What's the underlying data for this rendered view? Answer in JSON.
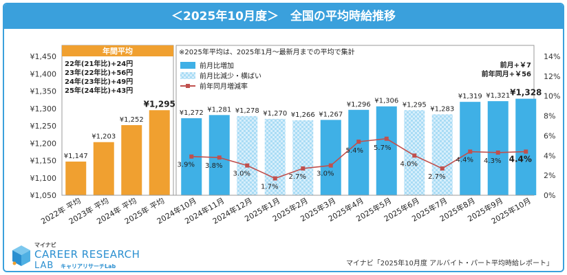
{
  "header": {
    "title": "＜2025年10月度＞　全国の平均時給推移"
  },
  "annual": {
    "title": "年間平均",
    "lines": [
      "22年(21年比)+24円",
      "23年(22年比)+56円",
      "24年(23年比)+49円",
      "25年(24年比)+43円"
    ]
  },
  "note": "※2025年平均は、2025年1月～最新月までの平均で集計",
  "change_box": {
    "mom": "前月+￥7",
    "yoy": "前年同月+￥56"
  },
  "legend": {
    "increase": "前月比増加",
    "decrease": "前月比減少・横ばい",
    "yoy_rate": "前年同月増減率"
  },
  "colors": {
    "annual": "#f0a030",
    "increase": "#3fb0e6",
    "decrease": "#a9dcf5",
    "line": "#c0504d",
    "header": "#3aa0dc"
  },
  "chart_data": {
    "type": "bar",
    "categories": [
      "2022年 平均",
      "2023年 平均",
      "2024年 平均",
      "2025年 平均",
      "2024年10月",
      "2024年11月",
      "2024年12月",
      "2025年1月",
      "2025年2月",
      "2025年3月",
      "2025年4月",
      "2025年5月",
      "2025年6月",
      "2025年7月",
      "2025年8月",
      "2025年9月",
      "2025年10月"
    ],
    "values": [
      1147,
      1203,
      1252,
      1295,
      1272,
      1281,
      1278,
      1270,
      1266,
      1267,
      1296,
      1306,
      1295,
      1283,
      1319,
      1321,
      1328
    ],
    "bar_kind": [
      "annual",
      "annual",
      "annual",
      "annual",
      "increase",
      "increase",
      "decrease",
      "decrease",
      "decrease",
      "increase",
      "increase",
      "increase",
      "decrease",
      "decrease",
      "increase",
      "increase",
      "increase"
    ],
    "value_labels": [
      "¥1,147",
      "¥1,203",
      "¥1,252",
      "¥1,295",
      "¥1,272",
      "¥1,281",
      "¥1,278",
      "¥1,270",
      "¥1,266",
      "¥1,267",
      "¥1,296",
      "¥1,306",
      "¥1,295",
      "¥1,283",
      "¥1,319",
      "¥1,321",
      "¥1,328"
    ],
    "ylim": [
      1050,
      1450
    ],
    "yticks": [
      "¥1,050",
      "¥1,100",
      "¥1,150",
      "¥1,200",
      "¥1,250",
      "¥1,300",
      "¥1,350",
      "¥1,400",
      "¥1,450"
    ],
    "y2lim": [
      0,
      14
    ],
    "y2ticks": [
      "0%",
      "2%",
      "4%",
      "6%",
      "8%",
      "10%",
      "12%",
      "14%"
    ],
    "yoy_rate": [
      3.9,
      3.8,
      3.0,
      1.7,
      2.7,
      3.0,
      5.4,
      5.7,
      4.0,
      2.7,
      4.4,
      4.3,
      4.4
    ],
    "yoy_labels": [
      "3.9%",
      "3.8%",
      "3.0%",
      "1.7%",
      "2.7%",
      "3.0%",
      "5.4%",
      "5.7%",
      "4.0%",
      "2.7%",
      "4.4%",
      "4.3%",
      "4.4%"
    ],
    "grid": false
  },
  "logo": {
    "brand": "マイナビ",
    "line1": "CAREER RESEARCH",
    "line2": "LAB",
    "sub": "キャリアリサーチLab"
  },
  "source": "マイナビ「2025年10月度 アルバイト・パート平均時給レポート」"
}
